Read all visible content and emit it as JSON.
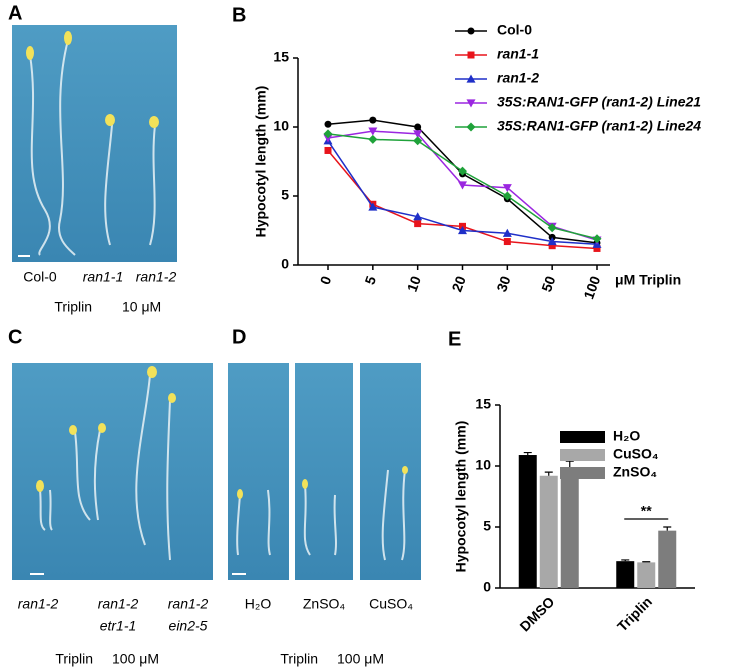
{
  "figure": {
    "A": {
      "label": "A",
      "captions": [
        "Col-0",
        "ran1-1",
        "ran1-2"
      ],
      "treatment": "Triplin",
      "dose": "10 μM"
    },
    "B": {
      "label": "B"
    },
    "C": {
      "label": "C",
      "captions": [
        [
          "ran1-2"
        ],
        [
          "ran1-2",
          "etr1-1"
        ],
        [
          "ran1-2",
          "ein2-5"
        ]
      ],
      "treatment": "Triplin",
      "dose": "100 μM"
    },
    "D": {
      "label": "D",
      "captions": [
        "H₂O",
        "ZnSO₄",
        "CuSO₄"
      ],
      "treatment": "Triplin",
      "dose": "100 μM"
    },
    "E": {
      "label": "E"
    }
  },
  "chart_data": [
    {
      "type": "line",
      "y_label": "Hypocotyl length (mm)",
      "x_label": "μM Triplin",
      "categories": [
        "0",
        "5",
        "10",
        "20",
        "30",
        "50",
        "100"
      ],
      "ylim": [
        0,
        15
      ],
      "yticks": [
        0,
        5,
        10,
        15
      ],
      "series": [
        {
          "name": "Col-0",
          "color": "#000000",
          "values": [
            10.2,
            10.5,
            10.0,
            6.6,
            4.8,
            2.0,
            1.6
          ]
        },
        {
          "name": "ran1-1",
          "color": "#e8141b",
          "values": [
            8.3,
            4.4,
            3.0,
            2.8,
            1.7,
            1.4,
            1.2
          ]
        },
        {
          "name": "ran1-2",
          "color": "#1f2fc8",
          "values": [
            9.0,
            4.2,
            3.5,
            2.5,
            2.3,
            1.7,
            1.5
          ]
        },
        {
          "name": "35S:RAN1-GFP (ran1-2) Line21",
          "color": "#9b27e0",
          "values": [
            9.2,
            9.7,
            9.5,
            5.8,
            5.6,
            2.8,
            1.8
          ]
        },
        {
          "name": "35S:RAN1-GFP (ran1-2) Line24",
          "color": "#1fa23a",
          "values": [
            9.5,
            9.1,
            9.0,
            6.8,
            5.0,
            2.7,
            1.9
          ]
        }
      ]
    },
    {
      "type": "bar",
      "y_label": "Hypocotyl length (mm)",
      "categories": [
        "DMSO",
        "Triplin"
      ],
      "ylim": [
        0,
        15
      ],
      "yticks": [
        0,
        5,
        10,
        15
      ],
      "annotation": "**",
      "series": [
        {
          "name": "H₂O",
          "color": "#000000",
          "values": [
            10.9,
            2.2
          ],
          "errors": [
            0.2,
            0.1
          ]
        },
        {
          "name": "CuSO₄",
          "color": "#a8a8a8",
          "values": [
            9.2,
            2.1
          ],
          "errors": [
            0.3,
            0.05
          ]
        },
        {
          "name": "ZnSO₄",
          "color": "#7d7d7d",
          "values": [
            9.9,
            4.7
          ],
          "errors": [
            0.5,
            0.3
          ]
        }
      ]
    }
  ]
}
